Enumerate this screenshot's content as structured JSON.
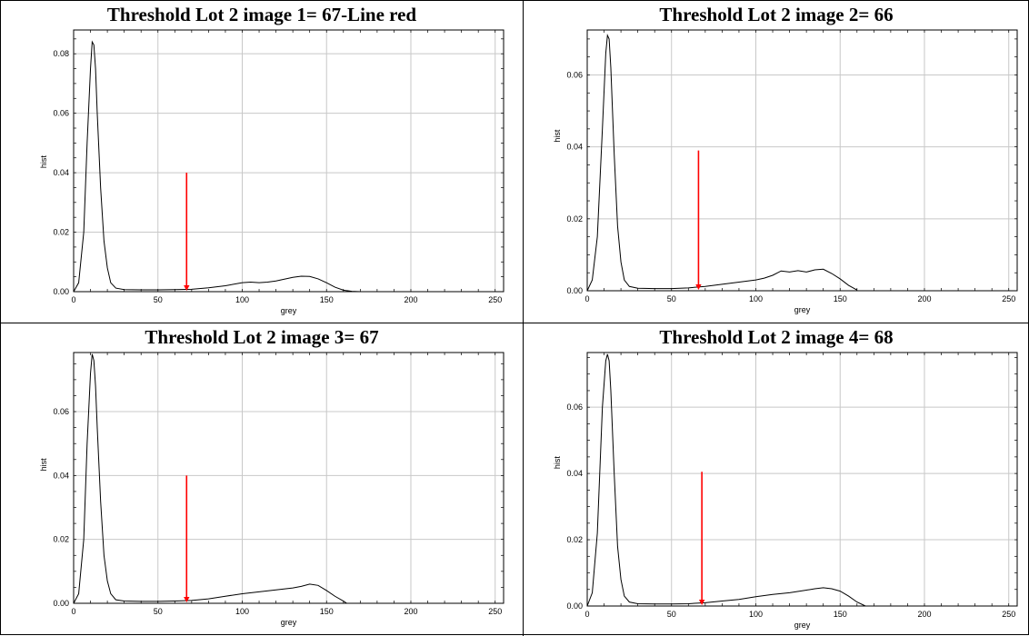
{
  "figure": {
    "panels": [
      {
        "title": "Threshold Lot 2 image 1= 67-Line red"
      },
      {
        "title": "Threshold Lot 2 image 2= 66"
      },
      {
        "title": "Threshold Lot 2 image 3= 67"
      },
      {
        "title": "Threshold Lot 2 image 4= 68"
      }
    ]
  },
  "colors": {
    "curve": "#000000",
    "arrow": "#ff0000",
    "grid": "#c8c8c8"
  },
  "chart_data": [
    {
      "type": "line",
      "title": "Threshold Lot 2 image 1= 67-Line red",
      "xlabel": "grey",
      "ylabel": "hist",
      "xlim": [
        0,
        255
      ],
      "ylim": [
        0,
        0.088
      ],
      "xticks": [
        0,
        50,
        100,
        150,
        200,
        250
      ],
      "yticks": [
        0.0,
        0.02,
        0.04,
        0.06,
        0.08
      ],
      "ytick_labels": [
        "0.00",
        "0.02",
        "0.04",
        "0.06",
        "0.08"
      ],
      "grid": true,
      "x": [
        0,
        3,
        6,
        8,
        10,
        11,
        12,
        13,
        14,
        16,
        18,
        20,
        22,
        25,
        30,
        40,
        50,
        60,
        70,
        80,
        90,
        100,
        105,
        110,
        115,
        120,
        125,
        130,
        135,
        140,
        145,
        150,
        155,
        160,
        165,
        170
      ],
      "y": [
        0.0,
        0.003,
        0.02,
        0.05,
        0.075,
        0.084,
        0.083,
        0.075,
        0.06,
        0.035,
        0.017,
        0.008,
        0.003,
        0.0012,
        0.0007,
        0.0006,
        0.0006,
        0.0007,
        0.0008,
        0.0013,
        0.002,
        0.003,
        0.0032,
        0.003,
        0.0032,
        0.0036,
        0.0042,
        0.0048,
        0.0052,
        0.0051,
        0.0043,
        0.003,
        0.0015,
        0.0005,
        0.0001,
        0.0
      ],
      "arrow": {
        "x": 67,
        "y_from": 0.04,
        "y_to": 0.0
      }
    },
    {
      "type": "line",
      "title": "Threshold Lot 2 image 2= 66",
      "xlabel": "grey",
      "ylabel": "hist",
      "xlim": [
        0,
        255
      ],
      "ylim": [
        0,
        0.0725
      ],
      "xticks": [
        0,
        50,
        100,
        150,
        200,
        250
      ],
      "yticks": [
        0.0,
        0.02,
        0.04,
        0.06
      ],
      "ytick_labels": [
        "0.00",
        "0.02",
        "0.04",
        "0.06"
      ],
      "grid": true,
      "x": [
        0,
        3,
        6,
        9,
        11,
        12,
        13,
        14,
        15,
        16,
        18,
        20,
        22,
        25,
        30,
        40,
        50,
        60,
        70,
        80,
        90,
        100,
        105,
        110,
        115,
        120,
        125,
        130,
        135,
        140,
        145,
        150,
        155,
        160
      ],
      "y": [
        0.0,
        0.003,
        0.015,
        0.045,
        0.066,
        0.071,
        0.07,
        0.062,
        0.05,
        0.038,
        0.018,
        0.008,
        0.003,
        0.0012,
        0.0007,
        0.0006,
        0.0006,
        0.0008,
        0.0012,
        0.0018,
        0.0024,
        0.003,
        0.0035,
        0.0043,
        0.0055,
        0.0052,
        0.0056,
        0.0052,
        0.0058,
        0.006,
        0.0048,
        0.0033,
        0.0015,
        0.0002
      ],
      "arrow": {
        "x": 66,
        "y_from": 0.039,
        "y_to": 0.0
      }
    },
    {
      "type": "line",
      "title": "Threshold Lot 2 image 3= 67",
      "xlabel": "grey",
      "ylabel": "hist",
      "xlim": [
        0,
        255
      ],
      "ylim": [
        0,
        0.0785
      ],
      "xticks": [
        0,
        50,
        100,
        150,
        200,
        250
      ],
      "yticks": [
        0.0,
        0.02,
        0.04,
        0.06
      ],
      "ytick_labels": [
        "0.00",
        "0.02",
        "0.04",
        "0.06"
      ],
      "grid": true,
      "x": [
        0,
        3,
        6,
        8,
        10,
        11,
        12,
        13,
        14,
        16,
        18,
        20,
        22,
        25,
        30,
        40,
        50,
        60,
        70,
        80,
        90,
        100,
        110,
        120,
        130,
        135,
        140,
        145,
        150,
        155,
        160,
        162
      ],
      "y": [
        0.0,
        0.003,
        0.02,
        0.05,
        0.072,
        0.078,
        0.076,
        0.068,
        0.055,
        0.032,
        0.015,
        0.007,
        0.003,
        0.0011,
        0.0007,
        0.0006,
        0.0006,
        0.0007,
        0.0009,
        0.0014,
        0.0022,
        0.003,
        0.0036,
        0.0042,
        0.0048,
        0.0053,
        0.006,
        0.0056,
        0.004,
        0.0022,
        0.0007,
        0.0
      ],
      "arrow": {
        "x": 67,
        "y_from": 0.04,
        "y_to": 0.0
      }
    },
    {
      "type": "line",
      "title": "Threshold Lot 2 image 4= 68",
      "xlabel": "grey",
      "ylabel": "hist",
      "xlim": [
        0,
        255
      ],
      "ylim": [
        0,
        0.0765
      ],
      "xticks": [
        0,
        50,
        100,
        150,
        200,
        250
      ],
      "yticks": [
        0.0,
        0.02,
        0.04,
        0.06
      ],
      "ytick_labels": [
        "0.00",
        "0.02",
        "0.04",
        "0.06"
      ],
      "grid": true,
      "x": [
        0,
        3,
        6,
        9,
        11,
        12,
        13,
        14,
        16,
        18,
        20,
        22,
        25,
        30,
        40,
        50,
        60,
        70,
        80,
        90,
        100,
        110,
        120,
        130,
        135,
        140,
        145,
        150,
        155,
        160,
        165
      ],
      "y": [
        0.0,
        0.004,
        0.022,
        0.06,
        0.074,
        0.076,
        0.074,
        0.065,
        0.04,
        0.018,
        0.008,
        0.003,
        0.0012,
        0.0007,
        0.0006,
        0.0006,
        0.0007,
        0.001,
        0.0015,
        0.002,
        0.0028,
        0.0035,
        0.004,
        0.0048,
        0.0052,
        0.0055,
        0.0052,
        0.0045,
        0.003,
        0.0012,
        0.0
      ],
      "arrow": {
        "x": 68,
        "y_from": 0.0405,
        "y_to": 0.0
      }
    }
  ]
}
